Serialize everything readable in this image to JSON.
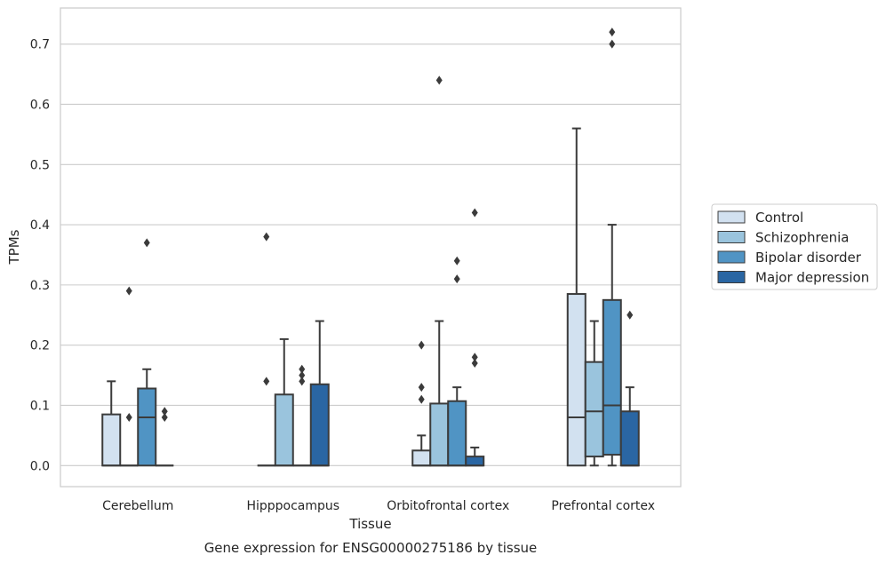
{
  "chart_data": {
    "type": "box",
    "caption": "Gene expression for ENSG00000275186 by tissue",
    "xlabel": "Tissue",
    "ylabel": "TPMs",
    "ylim": [
      -0.035,
      0.76
    ],
    "yticks": [
      "0.0",
      "0.1",
      "0.2",
      "0.3",
      "0.4",
      "0.5",
      "0.6",
      "0.7"
    ],
    "ytick_values": [
      0,
      0.1,
      0.2,
      0.3,
      0.4,
      0.5,
      0.6,
      0.7
    ],
    "grid": true,
    "legend_position": "right",
    "categories": [
      "Cerebellum",
      "Hipppocampus",
      "Orbitofrontal cortex",
      "Prefrontal cortex"
    ],
    "series": [
      {
        "name": "Control",
        "color": "#d2e1f0",
        "boxes": [
          {
            "min": 0,
            "q1": 0,
            "median": 0,
            "q3": 0.085,
            "max": 0.14,
            "outliers": []
          },
          {
            "min": 0,
            "q1": 0,
            "median": 0,
            "q3": 0,
            "max": 0,
            "outliers": [
              0.14,
              0.38
            ]
          },
          {
            "min": 0,
            "q1": 0,
            "median": 0,
            "q3": 0.025,
            "max": 0.05,
            "outliers": [
              0.11,
              0.13,
              0.2
            ]
          },
          {
            "min": 0,
            "q1": 0,
            "median": 0.08,
            "q3": 0.285,
            "max": 0.56,
            "outliers": []
          }
        ]
      },
      {
        "name": "Schizophrenia",
        "color": "#9ac4dd",
        "boxes": [
          {
            "min": 0,
            "q1": 0,
            "median": 0,
            "q3": 0,
            "max": 0,
            "outliers": [
              0.08,
              0.29
            ]
          },
          {
            "min": 0,
            "q1": 0,
            "median": 0,
            "q3": 0.118,
            "max": 0.21,
            "outliers": []
          },
          {
            "min": 0,
            "q1": 0,
            "median": 0,
            "q3": 0.103,
            "max": 0.24,
            "outliers": [
              0.64
            ]
          },
          {
            "min": 0,
            "q1": 0.015,
            "median": 0.09,
            "q3": 0.172,
            "max": 0.24,
            "outliers": []
          }
        ]
      },
      {
        "name": "Bipolar disorder",
        "color": "#5094c4",
        "boxes": [
          {
            "min": 0,
            "q1": 0,
            "median": 0.08,
            "q3": 0.128,
            "max": 0.16,
            "outliers": [
              0.37
            ]
          },
          {
            "min": 0,
            "q1": 0,
            "median": 0,
            "q3": 0,
            "max": 0,
            "outliers": [
              0.14,
              0.15,
              0.16
            ]
          },
          {
            "min": 0,
            "q1": 0,
            "median": 0,
            "q3": 0.107,
            "max": 0.13,
            "outliers": [
              0.31,
              0.34
            ]
          },
          {
            "min": 0,
            "q1": 0.018,
            "median": 0.1,
            "q3": 0.275,
            "max": 0.4,
            "outliers": [
              0.7,
              0.72
            ]
          }
        ]
      },
      {
        "name": "Major depression",
        "color": "#2a66a3",
        "boxes": [
          {
            "min": 0,
            "q1": 0,
            "median": 0,
            "q3": 0,
            "max": 0,
            "outliers": [
              0.08,
              0.09
            ]
          },
          {
            "min": 0,
            "q1": 0,
            "median": 0,
            "q3": 0.135,
            "max": 0.24,
            "outliers": []
          },
          {
            "min": 0,
            "q1": 0,
            "median": 0,
            "q3": 0.015,
            "max": 0.03,
            "outliers": [
              0.17,
              0.18,
              0.42
            ]
          },
          {
            "min": 0,
            "q1": 0,
            "median": 0,
            "q3": 0.09,
            "max": 0.13,
            "outliers": [
              0.25
            ]
          }
        ]
      }
    ]
  }
}
